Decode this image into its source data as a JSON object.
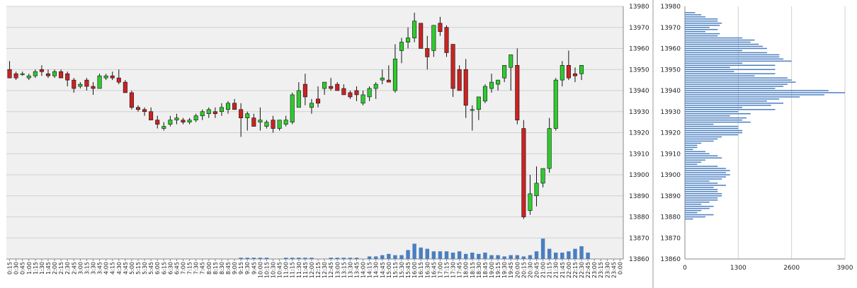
{
  "chart_data": [
    {
      "type": "candlestick",
      "title": "",
      "xlabel": "",
      "ylabel": "",
      "ylim": [
        13860,
        13980
      ],
      "yticks": [
        13860,
        13870,
        13880,
        13890,
        13900,
        13910,
        13920,
        13930,
        13940,
        13950,
        13960,
        13970,
        13980
      ],
      "grid": true,
      "colors": {
        "up": "#2ecc2e",
        "down": "#cc2222",
        "volume": "#4a7fc1",
        "wick": "#111111",
        "plot_bg": "#f0f0f0",
        "grid": "#d0d0d0"
      },
      "x": [
        "0:15",
        "0:30",
        "0:45",
        "1:00",
        "1:15",
        "1:30",
        "1:45",
        "2:00",
        "2:15",
        "2:30",
        "2:45",
        "3:00",
        "3:15",
        "3:30",
        "3:45",
        "4:00",
        "4:15",
        "4:30",
        "4:45",
        "5:00",
        "5:15",
        "5:30",
        "5:45",
        "6:00",
        "6:15",
        "6:30",
        "6:45",
        "7:00",
        "7:15",
        "7:30",
        "7:45",
        "8:00",
        "8:15",
        "8:30",
        "8:45",
        "9:00",
        "9:15",
        "9:30",
        "9:45",
        "10:00",
        "10:15",
        "10:30",
        "10:45",
        "11:00",
        "11:15",
        "11:30",
        "11:45",
        "12:00",
        "12:15",
        "12:30",
        "12:45",
        "13:00",
        "13:15",
        "13:30",
        "13:45",
        "14:00",
        "14:15",
        "14:30",
        "14:45",
        "15:00",
        "15:15",
        "15:30",
        "15:45",
        "16:00",
        "16:15",
        "16:30",
        "16:45",
        "17:00",
        "17:15",
        "17:30",
        "17:45",
        "18:00",
        "18:15",
        "18:30",
        "18:45",
        "19:00",
        "19:15",
        "19:30",
        "19:45",
        "20:00",
        "20:15",
        "20:30",
        "20:45",
        "21:00",
        "21:15",
        "21:30",
        "21:45",
        "22:00",
        "22:15",
        "22:30",
        "22:45",
        "23:00",
        "23:15",
        "23:30",
        "23:45",
        "0:00"
      ],
      "series": [
        {
          "values": [
            [
              13950,
              13954,
              13946,
              13946
            ],
            [
              13948,
              13949,
              13945,
              13946
            ],
            [
              13948,
              13949,
              13947,
              13948
            ],
            [
              13946,
              13948,
              13945,
              13947
            ],
            [
              13947,
              13950,
              13946,
              13949
            ],
            [
              13950,
              13952,
              13947,
              13949
            ],
            [
              13948,
              13950,
              13946,
              13947
            ],
            [
              13947,
              13950,
              13946,
              13949
            ],
            [
              13949,
              13950,
              13946,
              13946
            ],
            [
              13948,
              13949,
              13942,
              13945
            ],
            [
              13945,
              13946,
              13939,
              13941
            ],
            [
              13942,
              13944,
              13941,
              13943
            ],
            [
              13945,
              13946,
              13940,
              13942
            ],
            [
              13942,
              13944,
              13938,
              13941
            ],
            [
              13941,
              13948,
              13941,
              13947
            ],
            [
              13946,
              13948,
              13945,
              13947
            ],
            [
              13947,
              13949,
              13945,
              13946
            ],
            [
              13946,
              13950,
              13943,
              13944
            ],
            [
              13944,
              13945,
              13939,
              13939
            ],
            [
              13939,
              13940,
              13931,
              13932
            ],
            [
              13932,
              13933,
              13930,
              13931
            ],
            [
              13931,
              13932,
              13928,
              13930
            ],
            [
              13930,
              13932,
              13926,
              13926
            ],
            [
              13926,
              13928,
              13922,
              13924
            ],
            [
              13922,
              13925,
              13921,
              13923
            ],
            [
              13924,
              13928,
              13923,
              13926
            ],
            [
              13926,
              13929,
              13924,
              13927
            ],
            [
              13926,
              13927,
              13924,
              13925
            ],
            [
              13925,
              13927,
              13924,
              13926
            ],
            [
              13926,
              13929,
              13925,
              13928
            ],
            [
              13928,
              13931,
              13926,
              13930
            ],
            [
              13929,
              13932,
              13927,
              13931
            ],
            [
              13930,
              13932,
              13927,
              13929
            ],
            [
              13930,
              13934,
              13928,
              13932
            ],
            [
              13931,
              13935,
              13929,
              13934
            ],
            [
              13934,
              13936,
              13931,
              13931
            ],
            [
              13931,
              13934,
              13918,
              13927
            ],
            [
              13927,
              13930,
              13921,
              13929
            ],
            [
              13927,
              13929,
              13923,
              13923
            ],
            [
              13925,
              13932,
              13921,
              13926
            ],
            [
              13923,
              13926,
              13922,
              13925
            ],
            [
              13926,
              13928,
              13920,
              13922
            ],
            [
              13922,
              13926,
              13921,
              13926
            ],
            [
              13924,
              13928,
              13923,
              13926
            ],
            [
              13925,
              13939,
              13924,
              13938
            ],
            [
              13932,
              13944,
              13932,
              13940
            ],
            [
              13943,
              13948,
              13933,
              13937
            ],
            [
              13932,
              13936,
              13929,
              13934
            ],
            [
              13936,
              13942,
              13932,
              13934
            ],
            [
              13941,
              13943,
              13938,
              13944
            ],
            [
              13942,
              13946,
              13940,
              13941
            ],
            [
              13943,
              13944,
              13940,
              13940
            ],
            [
              13941,
              13943,
              13938,
              13938
            ],
            [
              13939,
              13940,
              13936,
              13937
            ],
            [
              13940,
              13942,
              13935,
              13938
            ],
            [
              13934,
              13940,
              13933,
              13938
            ],
            [
              13937,
              13942,
              13935,
              13941
            ],
            [
              13941,
              13944,
              13936,
              13943
            ],
            [
              13945,
              13950,
              13943,
              13946
            ],
            [
              13945,
              13952,
              13944,
              13944
            ],
            [
              13940,
              13962,
              13939,
              13955
            ],
            [
              13959,
              13965,
              13953,
              13963
            ],
            [
              13963,
              13970,
              13960,
              13965
            ],
            [
              13965,
              13977,
              13963,
              13973
            ],
            [
              13972,
              13970,
              13960,
              13960
            ],
            [
              13960,
              13966,
              13950,
              13956
            ],
            [
              13959,
              13965,
              13956,
              13971
            ],
            [
              13972,
              13975,
              13966,
              13968
            ],
            [
              13970,
              13971,
              13956,
              13958
            ],
            [
              13962,
              13962,
              13937,
              13941
            ],
            [
              13950,
              13952,
              13940,
              13940
            ],
            [
              13950,
              13955,
              13927,
              13933
            ],
            [
              13931,
              13933,
              13921,
              13931
            ],
            [
              13931,
              13937,
              13926,
              13937
            ],
            [
              13935,
              13943,
              13934,
              13942
            ],
            [
              13941,
              13948,
              13939,
              13944
            ],
            [
              13943,
              13945,
              13940,
              13945
            ],
            [
              13946,
              13950,
              13944,
              13952
            ],
            [
              13951,
              13955,
              13940,
              13957
            ],
            [
              13952,
              13960,
              13924,
              13926
            ],
            [
              13922,
              13926,
              13879,
              13880
            ],
            [
              13883,
              13900,
              13881,
              13891
            ],
            [
              13890,
              13904,
              13885,
              13896
            ],
            [
              13896,
              13902,
              13894,
              13903
            ],
            [
              13903,
              13927,
              13901,
              13922
            ],
            [
              13922,
              13946,
              13921,
              13945
            ],
            [
              13945,
              13954,
              13942,
              13952
            ],
            [
              13952,
              13959,
              13945,
              13946
            ],
            [
              13948,
              13951,
              13944,
              13947
            ],
            [
              13948,
              13952,
              13945,
              13952
            ],
            null,
            null,
            null,
            null,
            null,
            null
          ]
        },
        {
          "name": "Volume",
          "values": [
            0,
            0,
            0,
            0,
            0,
            0,
            0,
            0,
            0,
            0,
            0,
            0,
            0,
            0,
            0,
            0,
            0,
            0,
            0,
            0,
            0,
            0,
            0,
            0,
            0,
            0,
            0,
            0,
            0,
            0,
            0,
            0,
            0,
            0,
            0,
            0,
            1,
            1,
            1,
            1,
            1,
            0,
            0,
            1,
            1,
            1,
            1,
            1,
            0,
            0,
            1,
            1,
            1,
            1,
            1,
            0,
            2,
            2,
            3,
            4,
            3,
            3,
            7,
            12,
            9,
            8,
            6,
            6,
            6,
            5,
            6,
            4,
            5,
            4,
            5,
            3,
            3,
            2,
            3,
            3,
            2,
            3,
            6,
            16,
            8,
            5,
            5,
            6,
            8,
            10,
            5,
            0,
            0,
            0,
            0,
            0
          ]
        }
      ]
    },
    {
      "type": "bar",
      "title": "",
      "xlabel": "",
      "ylabel": "",
      "orientation": "horizontal",
      "xlim": [
        0,
        3900
      ],
      "xticks": [
        0,
        1300,
        2600,
        3900
      ],
      "ylim": [
        13860,
        13980
      ],
      "yticks": [
        13860,
        13870,
        13880,
        13890,
        13900,
        13910,
        13920,
        13930,
        13940,
        13950,
        13960,
        13970,
        13980
      ],
      "grid": true,
      "colors": {
        "bar": "#4a7fc1",
        "grid": "#d0d0d0"
      },
      "categories": [
        13977,
        13976,
        13975,
        13974,
        13973,
        13972,
        13971,
        13970,
        13969,
        13968,
        13967,
        13966,
        13965,
        13964,
        13963,
        13962,
        13961,
        13960,
        13959,
        13958,
        13957,
        13956,
        13955,
        13954,
        13953,
        13952,
        13951,
        13950,
        13949,
        13948,
        13947,
        13946,
        13945,
        13944,
        13943,
        13942,
        13941,
        13940,
        13939,
        13938,
        13937,
        13936,
        13935,
        13934,
        13933,
        13932,
        13931,
        13930,
        13929,
        13928,
        13927,
        13926,
        13925,
        13924,
        13923,
        13922,
        13921,
        13920,
        13919,
        13918,
        13917,
        13916,
        13915,
        13914,
        13913,
        13912,
        13911,
        13910,
        13909,
        13908,
        13907,
        13906,
        13905,
        13904,
        13903,
        13902,
        13901,
        13900,
        13899,
        13898,
        13897,
        13896,
        13895,
        13894,
        13893,
        13892,
        13891,
        13890,
        13889,
        13888,
        13887,
        13886,
        13885,
        13884,
        13883,
        13882,
        13881,
        13880,
        13879
      ],
      "values": [
        250,
        400,
        500,
        800,
        800,
        900,
        850,
        600,
        800,
        500,
        850,
        800,
        1400,
        1700,
        1600,
        1800,
        1900,
        2000,
        1400,
        2000,
        2300,
        2300,
        2400,
        2600,
        1400,
        2200,
        1100,
        2200,
        1200,
        2200,
        1700,
        2500,
        2600,
        2700,
        2500,
        2400,
        2200,
        3500,
        3900,
        3400,
        2800,
        2300,
        2000,
        2400,
        2100,
        1400,
        2200,
        1300,
        1600,
        1100,
        1500,
        1400,
        1600,
        700,
        1300,
        1300,
        1400,
        1400,
        1300,
        900,
        800,
        700,
        400,
        300,
        300,
        200,
        500,
        600,
        800,
        900,
        500,
        400,
        300,
        800,
        1000,
        1100,
        1000,
        1100,
        1000,
        900,
        600,
        800,
        1000,
        700,
        800,
        800,
        900,
        900,
        800,
        800,
        600,
        400,
        700,
        600,
        400,
        300,
        700,
        500,
        200
      ]
    }
  ]
}
